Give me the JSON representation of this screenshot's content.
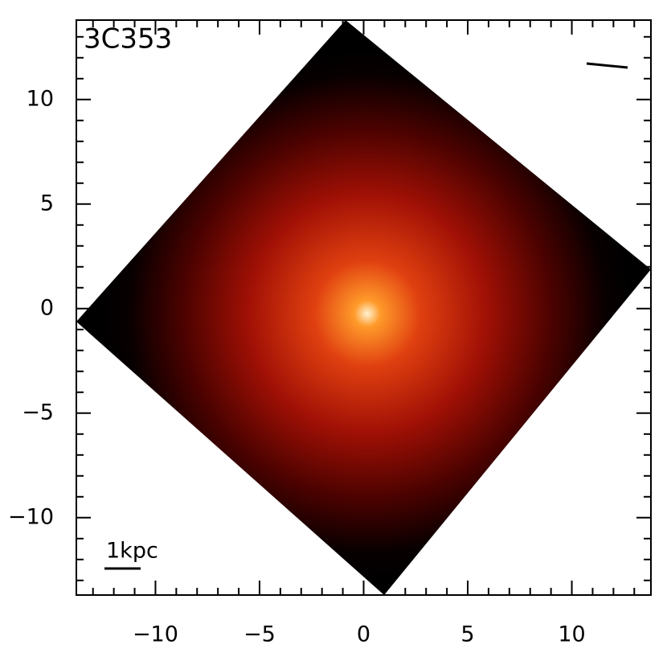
{
  "chart_data": {
    "type": "image",
    "title": "3C353",
    "annotation": "1kpc",
    "xlim": [
      -13.8,
      13.8
    ],
    "ylim": [
      -13.7,
      13.8
    ],
    "xticks": [
      {
        "value": -10,
        "label": "−10"
      },
      {
        "value": -5,
        "label": "−5"
      },
      0,
      5,
      10
    ],
    "yticks": [
      {
        "value": -10,
        "label": "−10"
      },
      {
        "value": -5,
        "label": "−5"
      },
      0,
      5,
      10
    ]
  }
}
